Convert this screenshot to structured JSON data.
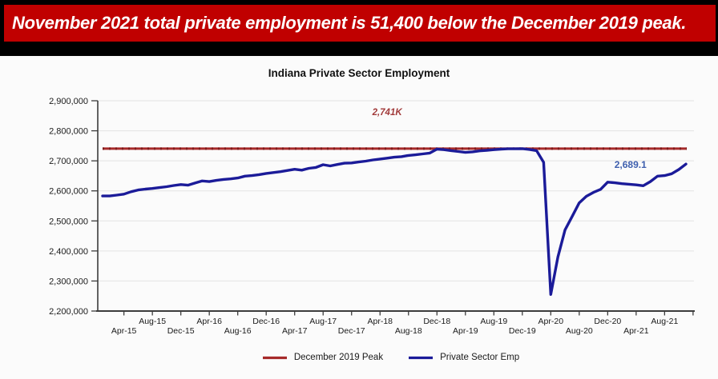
{
  "banner": {
    "text": "November 2021 total private employment is 51,400 below the December 2019 peak.",
    "bg_color": "#C00000",
    "text_color": "#FFFFFF"
  },
  "chart_data": {
    "type": "line",
    "title": "Indiana Private Sector Employment",
    "ylabel": "",
    "xlabel": "",
    "ylim": [
      2200000,
      2900000
    ],
    "y_tick_step": 100000,
    "grid": "horizontal",
    "legend_position": "bottom",
    "x_start_month": "Jan-15",
    "x_end_month": "Nov-21",
    "frequency": "monthly",
    "x_axis": {
      "first_label_month_index": 3,
      "label_step_months": 4,
      "end_tick": true,
      "labels": [
        "Apr-15",
        "Aug-15",
        "Dec-15",
        "Apr-16",
        "Aug-16",
        "Dec-16",
        "Apr-17",
        "Aug-17",
        "Dec-17",
        "Apr-18",
        "Aug-18",
        "Dec-18",
        "Apr-19",
        "Aug-19",
        "Dec-19",
        "Apr-20",
        "Aug-20",
        "Dec-20",
        "Apr-21",
        "Aug-21"
      ]
    },
    "series": [
      {
        "name": "December 2019 Peak",
        "type": "hline",
        "color": "#A62A2A",
        "dash_color": "#7E1A1A",
        "value_thousands": 2740.5,
        "display_label": "2,741K"
      },
      {
        "name": "Private Sector Emp",
        "type": "line",
        "color": "#1B1B99",
        "end_label": "2,689.1",
        "values_thousands": [
          2583,
          2583,
          2586,
          2589,
          2597,
          2603,
          2606,
          2608,
          2611,
          2614,
          2618,
          2621,
          2619,
          2626,
          2633,
          2631,
          2635,
          2638,
          2640,
          2643,
          2649,
          2651,
          2654,
          2658,
          2661,
          2664,
          2668,
          2672,
          2669,
          2675,
          2678,
          2687,
          2683,
          2688,
          2692,
          2693,
          2696,
          2699,
          2703,
          2706,
          2709,
          2712,
          2714,
          2718,
          2720,
          2723,
          2726,
          2739,
          2737,
          2734,
          2731,
          2728,
          2730,
          2733,
          2735,
          2737,
          2739,
          2740,
          2740,
          2740.5,
          2738,
          2734,
          2695,
          2255,
          2380,
          2470,
          2515,
          2560,
          2582,
          2595,
          2605,
          2629,
          2627,
          2624,
          2622,
          2620,
          2617,
          2631,
          2649,
          2651,
          2657,
          2671,
          2689.1
        ]
      }
    ],
    "annotations": [
      {
        "text": "2,741K",
        "color": "#A13A3A",
        "month": 40,
        "value_thousands": 2852,
        "italic": true
      },
      {
        "text": "2,689.1",
        "color": "#3E5FAE",
        "month": 74.2,
        "value_thousands": 2677,
        "italic": false
      }
    ]
  },
  "legend": {
    "items": [
      {
        "label": "December 2019 Peak",
        "color": "#A62A2A"
      },
      {
        "label": "Private Sector Emp",
        "color": "#1B1B99"
      }
    ]
  }
}
